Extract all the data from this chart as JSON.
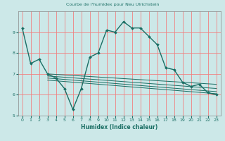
{
  "title": "Courbe de l'humidex pour Neu Ulrichstein",
  "xlabel": "Humidex (Indice chaleur)",
  "bg_color": "#cce8e8",
  "line_color": "#1a6e64",
  "grid_color_h": "#f08080",
  "grid_color_v": "#f08080",
  "xlim": [
    -0.5,
    23.5
  ],
  "ylim": [
    5.0,
    10.0
  ],
  "yticks": [
    5,
    6,
    7,
    8,
    9
  ],
  "xticks": [
    0,
    1,
    2,
    3,
    4,
    5,
    6,
    7,
    8,
    9,
    10,
    11,
    12,
    13,
    14,
    15,
    16,
    17,
    18,
    19,
    20,
    21,
    22,
    23
  ],
  "main_x": [
    0,
    1,
    2,
    3,
    4,
    5,
    6,
    7,
    8,
    9,
    10,
    11,
    12,
    13,
    14,
    15,
    16,
    17,
    18,
    19,
    20,
    21,
    22,
    23
  ],
  "main_y": [
    9.2,
    7.5,
    7.7,
    7.0,
    6.8,
    6.3,
    5.3,
    6.3,
    7.8,
    8.0,
    9.1,
    9.0,
    9.5,
    9.2,
    9.2,
    8.8,
    8.4,
    7.3,
    7.2,
    6.6,
    6.4,
    6.5,
    6.1,
    6.0
  ],
  "regression_lines": [
    {
      "x": [
        3,
        23
      ],
      "y": [
        7.0,
        6.5
      ]
    },
    {
      "x": [
        3,
        23
      ],
      "y": [
        6.9,
        6.3
      ]
    },
    {
      "x": [
        3,
        23
      ],
      "y": [
        6.8,
        6.15
      ]
    },
    {
      "x": [
        3,
        23
      ],
      "y": [
        6.7,
        6.05
      ]
    }
  ]
}
